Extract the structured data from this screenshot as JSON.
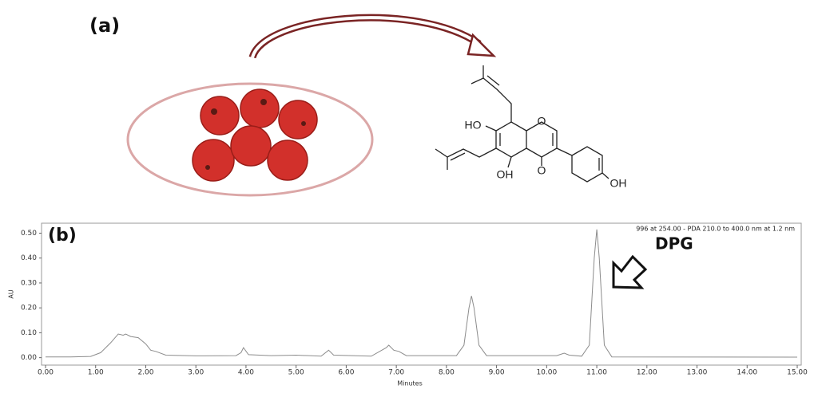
{
  "panel_a": {
    "label": "(a)",
    "atoms": [
      "HO",
      "O",
      "O",
      "OH",
      "OH"
    ]
  },
  "chart_data": {
    "type": "line",
    "label": "(b)",
    "annotation": "996  at 254.00 - PDA 210.0 to 400.0 nm at 1.2 nm",
    "peak_label": "DPG",
    "x_label": "Minutes",
    "y_label": "AU",
    "x": [
      0,
      0.5,
      0.9,
      1.1,
      1.3,
      1.45,
      1.55,
      1.6,
      1.7,
      1.85,
      2.0,
      2.1,
      2.2,
      2.4,
      3.0,
      3.8,
      3.9,
      3.95,
      4.05,
      4.5,
      5.0,
      5.5,
      5.65,
      5.75,
      6.5,
      6.8,
      6.85,
      6.95,
      7.05,
      7.2,
      8.2,
      8.35,
      8.45,
      8.5,
      8.55,
      8.65,
      8.8,
      10.2,
      10.35,
      10.45,
      10.7,
      10.85,
      10.95,
      11.0,
      11.05,
      11.15,
      11.3,
      15
    ],
    "series": [
      {
        "color": "#8c8c8c",
        "values": [
          0.003,
          0.003,
          0.005,
          0.02,
          0.06,
          0.095,
          0.09,
          0.095,
          0.085,
          0.08,
          0.055,
          0.03,
          0.025,
          0.01,
          0.007,
          0.008,
          0.02,
          0.04,
          0.012,
          0.008,
          0.01,
          0.006,
          0.03,
          0.01,
          0.006,
          0.04,
          0.05,
          0.03,
          0.025,
          0.008,
          0.008,
          0.05,
          0.2,
          0.248,
          0.2,
          0.05,
          0.008,
          0.008,
          0.018,
          0.01,
          0.006,
          0.05,
          0.4,
          0.515,
          0.4,
          0.05,
          0.003,
          0.002
        ]
      }
    ],
    "xlim": [
      0,
      15
    ],
    "ylim": [
      -0.03,
      0.54
    ],
    "xticks": [
      {
        "value": 0,
        "label": "0.00"
      },
      {
        "value": 1,
        "label": "1.00"
      },
      {
        "value": 2,
        "label": "2.00"
      },
      {
        "value": 3,
        "label": "3.00"
      },
      {
        "value": 4,
        "label": "4.00"
      },
      {
        "value": 5,
        "label": "5.00"
      },
      {
        "value": 6,
        "label": "6.00"
      },
      {
        "value": 7,
        "label": "7.00"
      },
      {
        "value": 8,
        "label": "8.00"
      },
      {
        "value": 9,
        "label": "9.00"
      },
      {
        "value": 10,
        "label": "10.00"
      },
      {
        "value": 11,
        "label": "11.00"
      },
      {
        "value": 12,
        "label": "12.00"
      },
      {
        "value": 13,
        "label": "13.00"
      },
      {
        "value": 14,
        "label": "14.00"
      },
      {
        "value": 15,
        "label": "15.00"
      }
    ],
    "yticks": [
      {
        "value": 0,
        "label": "0.00"
      },
      {
        "value": 0.1,
        "label": "0.10"
      },
      {
        "value": 0.2,
        "label": "0.20"
      },
      {
        "value": 0.3,
        "label": "0.30"
      },
      {
        "value": 0.4,
        "label": "0.40"
      },
      {
        "value": 0.5,
        "label": "0.50"
      }
    ]
  }
}
